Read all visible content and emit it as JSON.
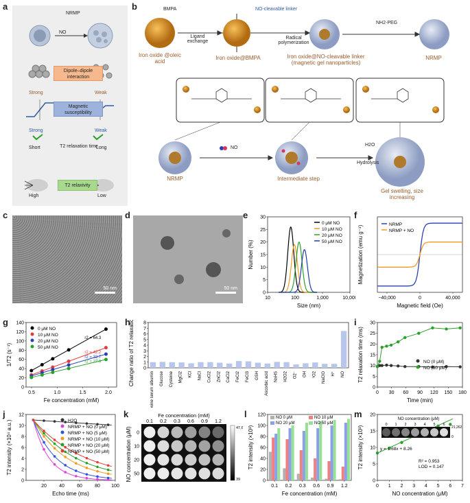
{
  "panel_labels": {
    "a": "a",
    "b": "b",
    "c": "c",
    "d": "d",
    "e": "e",
    "f": "f",
    "g": "g",
    "h": "h",
    "i": "i",
    "j": "j",
    "k": "k",
    "l": "l",
    "m": "m"
  },
  "panel_a": {
    "title": "NRMP",
    "arrow_label": "NO",
    "box1": "Dipole–dipole interaction",
    "strong1": "Strong",
    "weak1": "Weak",
    "box2": "Magnetic susceptibility",
    "strong2": "Strong",
    "weak2": "Weak",
    "short": "Short",
    "long": "Long",
    "relax": "T2 relaxation time",
    "box3": "T2 relaxivity",
    "high": "High",
    "low": "Low"
  },
  "panel_b": {
    "bmpa": "BMPA",
    "step1": "Ligand exchange",
    "linker": "NO-cleavable linker",
    "step2": "Radical polymerization",
    "peg": "NH2-PEG",
    "lab1": "Iron oxide @oleic acid",
    "lab2": "Iron oxide@BMPA",
    "lab3": "Iron oxide@NO-cleavable linker (magnetic gel nanoparticles)",
    "lab4": "NRMP",
    "bottom1": "NRMP",
    "bottom_no": "NO",
    "bottom2": "Intermediate step",
    "h2o": "H2O",
    "hydrolysis": "Hydrolysis",
    "bottom3": "Gel swelling, size increasing"
  },
  "panel_c": {
    "scale": "50 nm"
  },
  "panel_d": {
    "scale": "50 nm"
  },
  "chart_data": [
    {
      "id": "e",
      "type": "line",
      "xlabel": "Size (nm)",
      "ylabel": "Number (%)",
      "xscale": "log",
      "xlim": [
        10,
        10000
      ],
      "ylim": [
        0,
        30
      ],
      "xticks": [
        "10",
        "100",
        "1,000",
        "10,000"
      ],
      "yticks": [
        "0",
        "5",
        "10",
        "15",
        "20",
        "25",
        "30"
      ],
      "series": [
        {
          "name": "0 μM NO",
          "color": "#000000",
          "peak": 70,
          "height": 26
        },
        {
          "name": "10 μM NO",
          "color": "#f39a1e",
          "peak": 95,
          "height": 19
        },
        {
          "name": "20 μM NO",
          "color": "#2aa02a",
          "peak": 140,
          "height": 20
        },
        {
          "name": "50 μM NO",
          "color": "#1f3aa6",
          "peak": 220,
          "height": 17
        }
      ]
    },
    {
      "id": "f",
      "type": "line",
      "xlabel": "Magnetic field (Oe)",
      "ylabel": "Magnetization (emu g⁻¹)",
      "xlim": [
        -50000,
        50000
      ],
      "ylim": [
        -60,
        60
      ],
      "xticks": [
        "−40,000",
        "0",
        "40,000"
      ],
      "series": [
        {
          "name": "NRMP",
          "color": "#2b3fb5",
          "ms": 50
        },
        {
          "name": "NRMP + NO",
          "color": "#f39a1e",
          "ms": 20
        }
      ]
    },
    {
      "id": "g",
      "type": "scatter",
      "xlabel": "Fe concentration (mM)",
      "ylabel": "1/T2 (s⁻¹)",
      "xlim": [
        0.5,
        2.2
      ],
      "ylim": [
        0,
        140
      ],
      "xticks": [
        "0.5",
        "1.0",
        "1.5",
        "2.0"
      ],
      "yticks": [
        "0",
        "20",
        "40",
        "60",
        "80",
        "100",
        "120",
        "140"
      ],
      "x": [
        0.6,
        0.8,
        1.0,
        1.3,
        2.0
      ],
      "series": [
        {
          "name": "0 μM NO",
          "color": "#000000",
          "slope": 64.3,
          "intercept": -3,
          "label": "r2 = 64.3"
        },
        {
          "name": "10 μM NO",
          "color": "#e23b3b",
          "slope": 42.2,
          "intercept": 1,
          "label": "r2 = 42.2"
        },
        {
          "name": "20 μM NO",
          "color": "#2b3fb5",
          "slope": 33.7,
          "intercept": 4,
          "label": "r2 = 33.7"
        },
        {
          "name": "50 μM NO",
          "color": "#2aa02a",
          "slope": 27.9,
          "intercept": 4,
          "label": "r2 = 27.9"
        }
      ]
    },
    {
      "id": "h",
      "type": "bar",
      "ylabel": "Change ratio of T2 relaxation time",
      "ylim": [
        0,
        8
      ],
      "yticks": [
        "0",
        "1",
        "2",
        "3",
        "4",
        "5",
        "6",
        "7",
        "8"
      ],
      "categories": [
        "Bovine serum albumin",
        "Glucose",
        "Cysteine",
        "MgCl2",
        "KCl",
        "NaCl",
        "CuCl2",
        "ZnCl2",
        "CaCl2",
        "FeCl2",
        "FeCl3",
        "GSH",
        "Ascorbic acid",
        "NaHS",
        "H2O2",
        "O2⁻",
        "OH",
        "¹O2",
        "NaClO",
        "H⁺",
        "NO"
      ],
      "values": [
        1.0,
        1.05,
        1.0,
        0.95,
        0.8,
        1.0,
        1.0,
        0.9,
        0.75,
        1.2,
        1.15,
        0.9,
        0.75,
        1.05,
        1.0,
        0.6,
        0.8,
        0.95,
        0.7,
        0.7,
        6.5
      ]
    },
    {
      "id": "i",
      "type": "line",
      "xlabel": "Time (min)",
      "ylabel": "T2 relaxation time (ms)",
      "xlim": [
        0,
        185
      ],
      "ylim": [
        0,
        30
      ],
      "xticks": [
        "0",
        "30",
        "60",
        "90",
        "120",
        "150",
        "180"
      ],
      "yticks": [
        "0",
        "5",
        "10",
        "15",
        "20",
        "25",
        "30"
      ],
      "series": [
        {
          "name": "NO (0 μM)",
          "color": "#333333",
          "x": [
            0,
            5,
            10,
            20,
            30,
            45,
            60,
            90,
            120,
            150,
            180
          ],
          "y": [
            9.5,
            10,
            10,
            10.2,
            10,
            9.8,
            9.5,
            9.5,
            9.3,
            9.5,
            9.4
          ]
        },
        {
          "name": "NO (50 μM)",
          "color": "#2aa02a",
          "x": [
            0,
            5,
            10,
            20,
            30,
            45,
            60,
            90,
            120,
            150,
            180
          ],
          "y": [
            9.5,
            12,
            18.5,
            19,
            19.5,
            21,
            23,
            25,
            27.5,
            27,
            27.5
          ]
        }
      ]
    },
    {
      "id": "j",
      "type": "line",
      "xlabel": "Echo time (ms)",
      "ylabel": "T2 intensity (×10⁴ a.u.)",
      "xlim": [
        0,
        100
      ],
      "ylim": [
        0,
        12
      ],
      "xticks": [
        "20",
        "40",
        "60",
        "80",
        "100"
      ],
      "yticks": [
        "0",
        "2",
        "4",
        "6",
        "8",
        "10",
        "12"
      ],
      "series": [
        {
          "name": "H2O",
          "color": "#333333",
          "a": 11,
          "tau": 1000
        },
        {
          "name": "NRMP + NO (0 μM)",
          "color": "#e040e0",
          "a": 11,
          "tau": 18
        },
        {
          "name": "NRMP + NO (5 μM)",
          "color": "#3050e0",
          "a": 11,
          "tau": 26
        },
        {
          "name": "NRMP + NO (10 μM)",
          "color": "#f39a1e",
          "a": 11,
          "tau": 38
        },
        {
          "name": "NRMP + NO (20 μM)",
          "color": "#2aa02a",
          "a": 11,
          "tau": 48
        },
        {
          "name": "NRMP + NO (50 μM)",
          "color": "#e23b3b",
          "a": 11,
          "tau": 60
        }
      ]
    },
    {
      "id": "k",
      "type": "heatmap",
      "title": "Fe concentration (mM)",
      "ylabel": "NO concentration (μM)",
      "cols": [
        "0.1",
        "0.2",
        "0.3",
        "0.6",
        "0.9",
        "1.2"
      ],
      "rows": [
        "0",
        "10",
        "20",
        "50"
      ],
      "scale_max": "47,653",
      "scale_min": "39"
    },
    {
      "id": "l",
      "type": "bar",
      "xlabel": "Fe concentration (mM)",
      "ylabel": "T2 intensity (×10³)",
      "ylim": [
        0,
        120
      ],
      "yticks": [
        "0",
        "20",
        "40",
        "60",
        "80",
        "100",
        "120"
      ],
      "categories": [
        "0.1",
        "0.2",
        "0.3",
        "0.6",
        "0.9",
        "1.2"
      ],
      "series": [
        {
          "name": "NO 0 μM",
          "color": "#b0b0b0",
          "values": [
            52,
            22,
            12,
            5,
            3,
            2
          ]
        },
        {
          "name": "NO 10 μM",
          "color": "#f08080",
          "values": [
            78,
            75,
            55,
            40,
            35,
            25
          ]
        },
        {
          "name": "NO 20 μM",
          "color": "#8aa0e8",
          "values": [
            85,
            95,
            90,
            95,
            100,
            105
          ]
        },
        {
          "name": "NO 50 μM",
          "color": "#98e098",
          "values": [
            95,
            100,
            105,
            108,
            110,
            112
          ]
        }
      ]
    },
    {
      "id": "m",
      "type": "scatter",
      "xlabel": "NO concentration (μM)",
      "ylabel": "T2 intensity (×10³)",
      "xlim": [
        0,
        7
      ],
      "ylim": [
        0,
        20
      ],
      "xticks": [
        "0",
        "1",
        "2",
        "3",
        "4",
        "5",
        "6",
        "7"
      ],
      "yticks": [
        "0",
        "5",
        "10",
        "15",
        "20"
      ],
      "inset_title": "NO concentration (μM)",
      "inset_ticks": [
        "0",
        "1",
        "2",
        "3",
        "4",
        "5",
        "6"
      ],
      "inset_max": "21,262",
      "inset_min": "0",
      "x": [
        0,
        1,
        2,
        3,
        4,
        5,
        6
      ],
      "y": [
        8.3,
        9.8,
        11.5,
        13.5,
        15.2,
        16.5,
        17.0
      ],
      "equation": "y = 1.68x + 8.26",
      "r2": "R² = 0.953",
      "lod": "LOD = 0.147"
    }
  ]
}
